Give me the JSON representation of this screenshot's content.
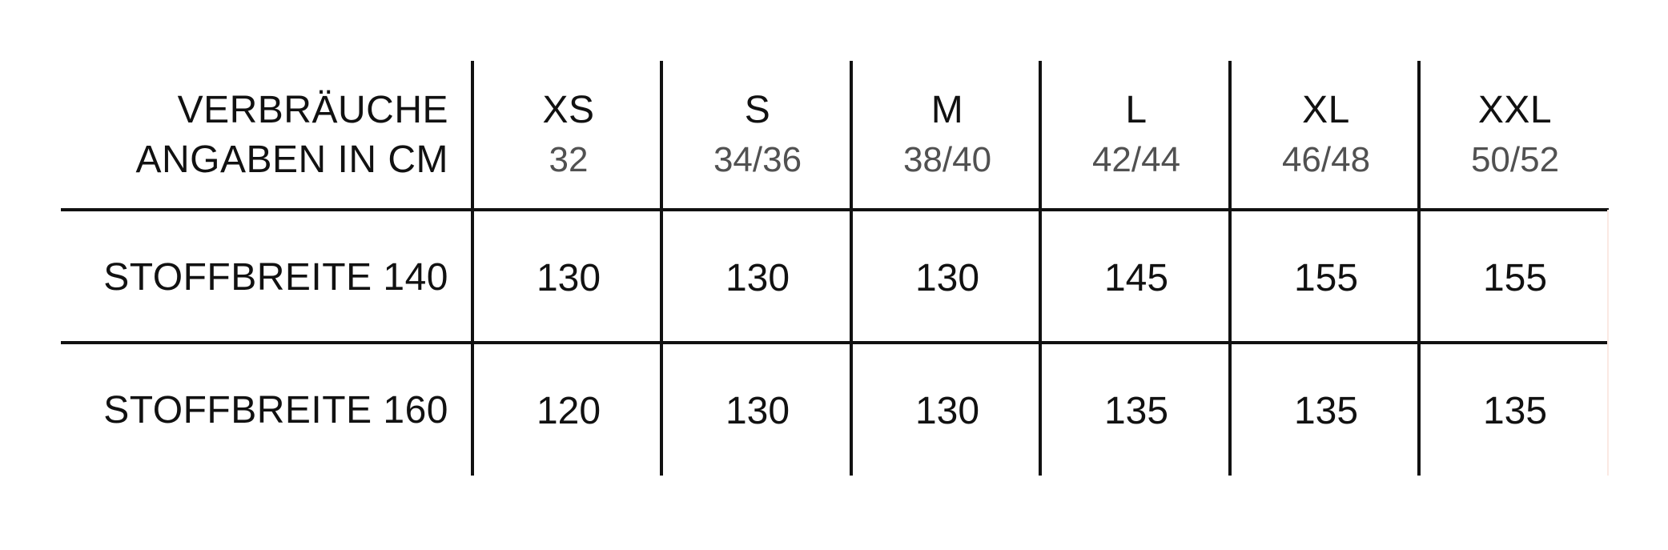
{
  "header": {
    "title_line1": "VERBRÄUCHE",
    "title_line2": "ANGABEN IN CM",
    "sizes": [
      {
        "label": "XS",
        "numbers": "32"
      },
      {
        "label": "S",
        "numbers": "34/36"
      },
      {
        "label": "M",
        "numbers": "38/40"
      },
      {
        "label": "L",
        "numbers": "42/44"
      },
      {
        "label": "XL",
        "numbers": "46/48"
      },
      {
        "label": "XXL",
        "numbers": "50/52"
      }
    ]
  },
  "rows": [
    {
      "label": "STOFFBREITE 140",
      "values": [
        "130",
        "130",
        "130",
        "145",
        "155",
        "155"
      ]
    },
    {
      "label": "STOFFBREITE 160",
      "values": [
        "120",
        "130",
        "130",
        "135",
        "135",
        "135"
      ]
    }
  ]
}
